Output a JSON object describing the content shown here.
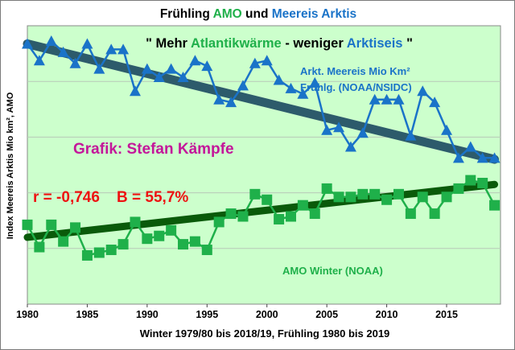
{
  "title": {
    "part1": "Frühling",
    "part2": "AMO",
    "part3": "und",
    "part4": "Meereis Arktis"
  },
  "subtitle": {
    "q1": "\"",
    "w1": "Mehr",
    "w2": "Atlantikwärme",
    "w3": "- weniger",
    "w4": "Arktiseis",
    "q2": "\""
  },
  "colors": {
    "plot_bg": "#ccffcc",
    "ice_series": "#1a73c8",
    "ice_trend": "#2d5b6b",
    "amo_series": "#1fb04a",
    "amo_trend": "#0a5a0a",
    "credit": "#c4169a",
    "stats": "#ee1111"
  },
  "annotations": {
    "ice_label_1": "Arkt. Meereis Mio Km²",
    "ice_label_2": "Frühlg. (NOAA/NSIDC)",
    "credit": "Grafik: Stefan Kämpfe",
    "stats": "r = -0,746    B = 55,7%",
    "amo_label": "AMO Winter (NOAA)"
  },
  "chart_data": {
    "type": "line",
    "title": "Frühling AMO und Meereis Arktis",
    "xlabel": "Winter 1979/80 bis 2018/19, Frühling 1980 bis 2019",
    "ylabel": "Index Meereis Arktis Mio km², AMO",
    "xlim": [
      1980,
      2019.5
    ],
    "ylim": [
      0,
      100
    ],
    "x_ticks": [
      1980,
      1985,
      1990,
      1995,
      2000,
      2005,
      2010,
      2015
    ],
    "y_ticks": [
      0,
      20,
      40,
      60,
      80,
      100
    ],
    "grid": true,
    "x": [
      1980,
      1981,
      1982,
      1983,
      1984,
      1985,
      1986,
      1987,
      1988,
      1989,
      1990,
      1991,
      1992,
      1993,
      1994,
      1995,
      1996,
      1997,
      1998,
      1999,
      2000,
      2001,
      2002,
      2003,
      2004,
      2005,
      2006,
      2007,
      2008,
      2009,
      2010,
      2011,
      2012,
      2013,
      2014,
      2015,
      2016,
      2017,
      2018,
      2019
    ],
    "series": [
      {
        "name": "Arkt. Meereis Mio Km² Frühlg. (NOAA/NSIDC)",
        "marker": "triangle",
        "values": [
          93.5,
          87.5,
          94.5,
          90.5,
          86.5,
          93.5,
          84.5,
          91.5,
          91.5,
          76.5,
          84.5,
          81.5,
          84.5,
          81.5,
          87.5,
          85.5,
          73.5,
          72.5,
          78.5,
          86.5,
          87.5,
          80.5,
          77.5,
          75.5,
          79.5,
          62.5,
          63.5,
          56.5,
          61.5,
          73.5,
          73.5,
          73.5,
          60.5,
          76.5,
          72.5,
          62.5,
          52.5,
          56.5,
          52.5,
          52.5
        ],
        "trend": [
          93.5,
          52.0
        ]
      },
      {
        "name": "AMO Winter (NOAA)",
        "marker": "square",
        "values": [
          28.5,
          20.5,
          28.5,
          22.5,
          27.5,
          17.5,
          18.5,
          19.5,
          21.5,
          29.5,
          23.5,
          24.5,
          26.5,
          21.5,
          22.5,
          19.5,
          29.5,
          32.5,
          31.5,
          39.5,
          37.5,
          30.5,
          31.5,
          35.5,
          32.5,
          41.5,
          38.5,
          38.5,
          39.5,
          39.5,
          37.5,
          39.5,
          32.5,
          38.5,
          32.5,
          38.5,
          41.5,
          44.5,
          43.5,
          35.5
        ],
        "trend": [
          24.0,
          43.0
        ]
      }
    ]
  }
}
